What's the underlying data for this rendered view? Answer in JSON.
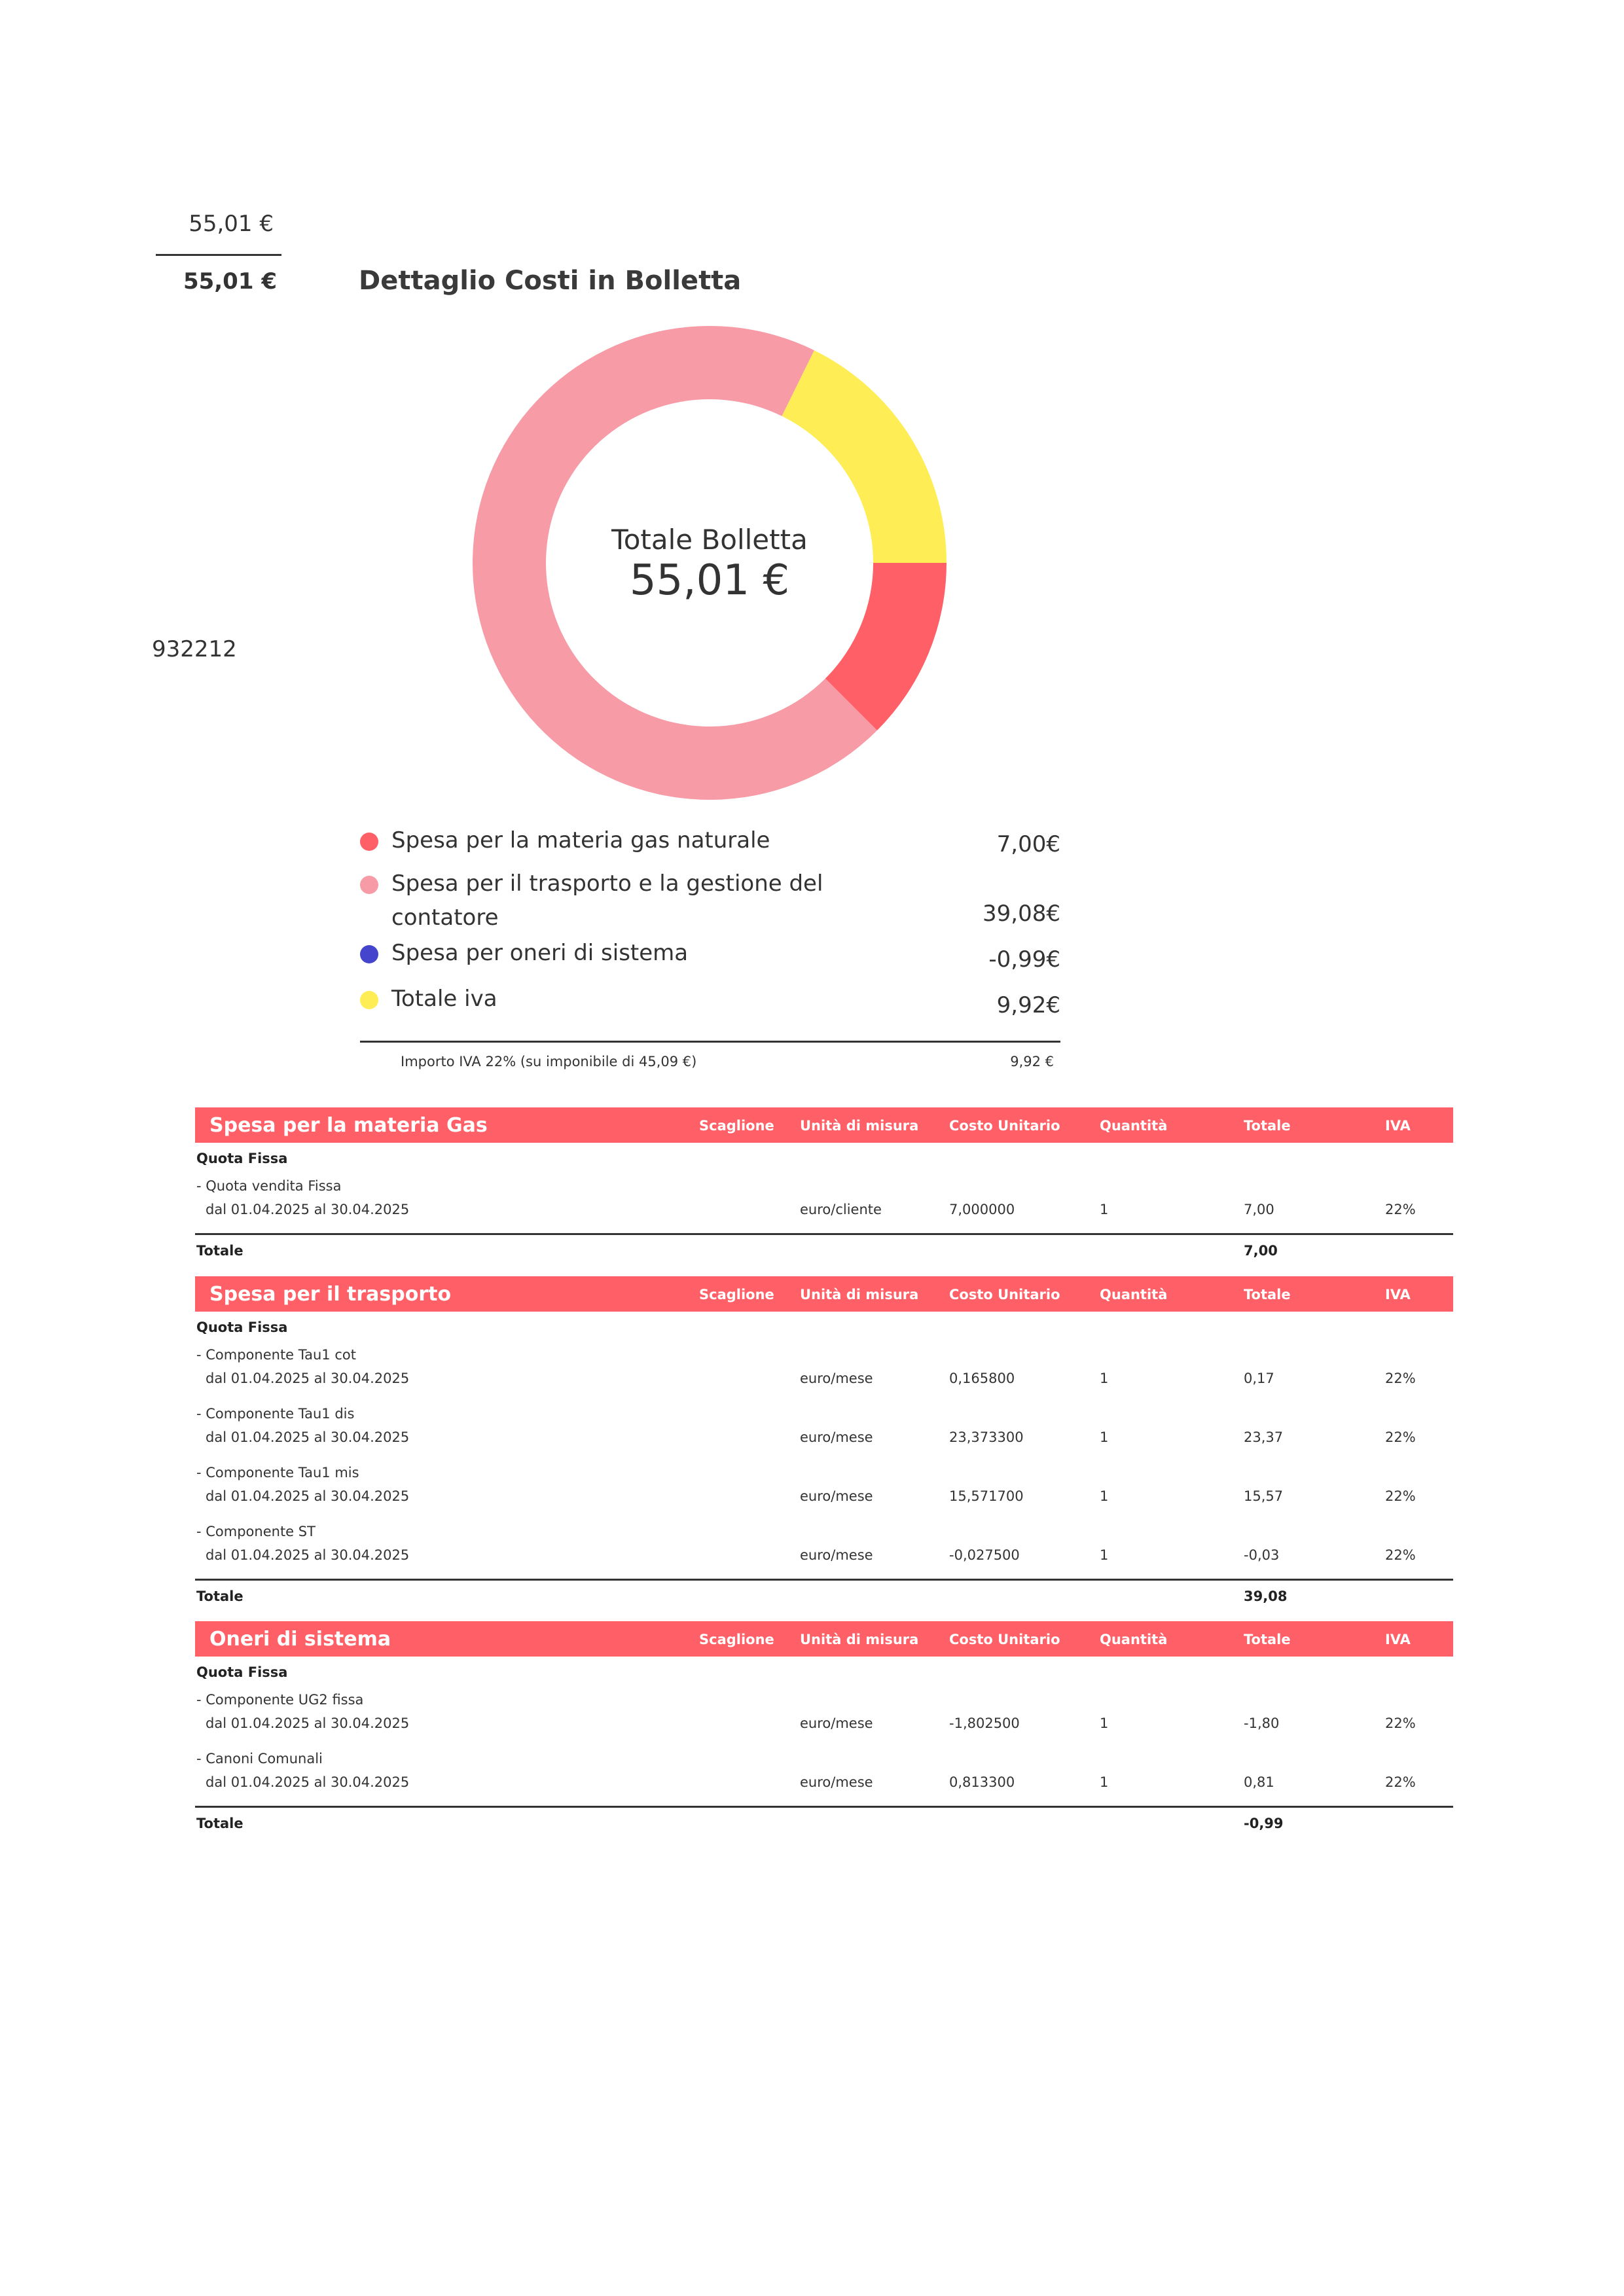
{
  "top": {
    "amount": "55,01 €",
    "amount_bold": "55,01 €",
    "code_fragment": "932212"
  },
  "section_title": "Dettaglio Costi in Bolletta",
  "chart_data": {
    "type": "pie",
    "center_label": "Totale Bolletta",
    "center_value": "55,01 €",
    "series": [
      {
        "name": "Spesa per la materia gas naturale",
        "value": 7.0,
        "display": "7,00€",
        "color": "#ff5f66"
      },
      {
        "name": "Spesa per il trasporto e la gestione del contatore",
        "value": 39.08,
        "display": "39,08€",
        "color": "#f79ba6"
      },
      {
        "name": "Spesa per oneri di sistema",
        "value": -0.99,
        "display": "-0,99€",
        "color": "#4444cc"
      },
      {
        "name": "Totale iva",
        "value": 9.92,
        "display": "9,92€",
        "color": "#ffed55"
      }
    ]
  },
  "legend": {
    "items": [
      {
        "label": "Spesa per la materia gas naturale",
        "value": "7,00€",
        "color": "#ff5f66"
      },
      {
        "label": "Spesa per il trasporto e la gestione del contatore",
        "value": "39,08€",
        "color": "#f79ba6"
      },
      {
        "label": "Spesa per oneri di sistema",
        "value": "-0,99€",
        "color": "#4444cc"
      },
      {
        "label": "Totale iva",
        "value": "9,92€",
        "color": "#ffed55"
      }
    ],
    "iva_note": "Importo IVA 22% (su imponibile di 45,09 €)",
    "iva_note_value": "9,92 €"
  },
  "columns": {
    "scaglione": "Scaglione",
    "unita": "Unità di misura",
    "costo": "Costo Unitario",
    "quantita": "Quantità",
    "totale": "Totale",
    "iva": "IVA"
  },
  "tables": [
    {
      "title": "Spesa per la materia Gas",
      "sub_title": "Quota Fissa",
      "items": [
        {
          "name": "- Quota vendita Fissa",
          "period": "dal 01.04.2025 al 30.04.2025",
          "unit": "euro/cliente",
          "cost": "7,000000",
          "qty": "1",
          "total": "7,00",
          "iva": "22%"
        }
      ],
      "total_label": "Totale",
      "total_value": "7,00"
    },
    {
      "title": "Spesa per il trasporto",
      "sub_title": "Quota Fissa",
      "items": [
        {
          "name": "- Componente Tau1 cot",
          "period": "dal 01.04.2025 al 30.04.2025",
          "unit": "euro/mese",
          "cost": "0,165800",
          "qty": "1",
          "total": "0,17",
          "iva": "22%"
        },
        {
          "name": "- Componente Tau1 dis",
          "period": "dal 01.04.2025 al 30.04.2025",
          "unit": "euro/mese",
          "cost": "23,373300",
          "qty": "1",
          "total": "23,37",
          "iva": "22%"
        },
        {
          "name": "- Componente Tau1 mis",
          "period": "dal 01.04.2025 al 30.04.2025",
          "unit": "euro/mese",
          "cost": "15,571700",
          "qty": "1",
          "total": "15,57",
          "iva": "22%"
        },
        {
          "name": "- Componente ST",
          "period": "dal 01.04.2025 al 30.04.2025",
          "unit": "euro/mese",
          "cost": "-0,027500",
          "qty": "1",
          "total": "-0,03",
          "iva": "22%"
        }
      ],
      "total_label": "Totale",
      "total_value": "39,08"
    },
    {
      "title": "Oneri di sistema",
      "sub_title": "Quota Fissa",
      "items": [
        {
          "name": "- Componente UG2 fissa",
          "period": "dal 01.04.2025 al 30.04.2025",
          "unit": "euro/mese",
          "cost": "-1,802500",
          "qty": "1",
          "total": "-1,80",
          "iva": "22%"
        },
        {
          "name": "- Canoni Comunali",
          "period": "dal 01.04.2025 al 30.04.2025",
          "unit": "euro/mese",
          "cost": "0,813300",
          "qty": "1",
          "total": "0,81",
          "iva": "22%"
        }
      ],
      "total_label": "Totale",
      "total_value": "-0,99"
    }
  ]
}
